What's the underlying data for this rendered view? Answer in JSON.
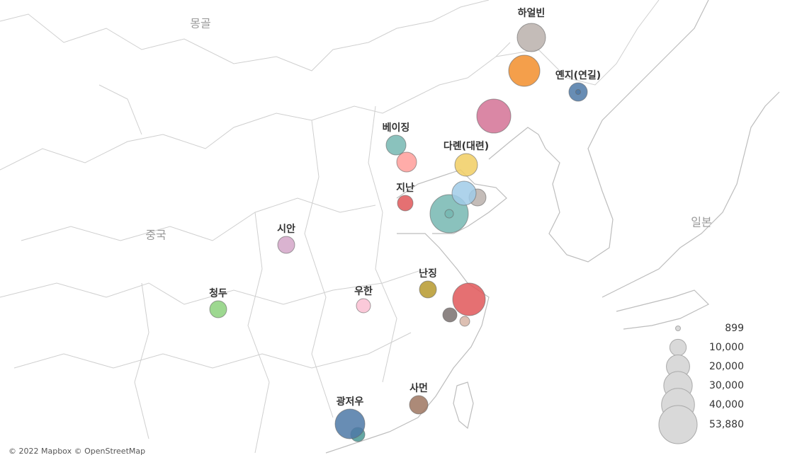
{
  "map_labels": [
    "몽골",
    "중국",
    "일본"
  ],
  "bubbles": [
    {
      "label": "하얼빈",
      "value": 29600,
      "color": "#bab0ac"
    },
    {
      "value": 35800,
      "color": "#f28e2b"
    },
    {
      "label": "옌지(연길)",
      "value": 12500,
      "color": "#4e79a7"
    },
    {
      "value": 900,
      "color": "#4e79a7"
    },
    {
      "value": 42600,
      "color": "#d37295"
    },
    {
      "label": "베이징",
      "value": 14500,
      "color": "#76b7b2"
    },
    {
      "value": 14500,
      "color": "#ff9d9a"
    },
    {
      "label": "다롄(대련)",
      "value": 18900,
      "color": "#f1ce63"
    },
    {
      "value": 53880,
      "color": "#76b7b2"
    },
    {
      "value": 2700,
      "color": "#76b7b2"
    },
    {
      "value": 10600,
      "color": "#bab0ac"
    },
    {
      "value": 21400,
      "color": "#a0cbe8"
    },
    {
      "label": "지난",
      "value": 8900,
      "color": "#e15759"
    },
    {
      "label": "시안",
      "value": 10600,
      "color": "#d4a6c8"
    },
    {
      "label": "난징",
      "value": 10600,
      "color": "#b6992d"
    },
    {
      "value": 39100,
      "color": "#e15759"
    },
    {
      "value": 7400,
      "color": "#79706e"
    },
    {
      "value": 3600,
      "color": "#d7b5a6"
    },
    {
      "label": "청두",
      "value": 10600,
      "color": "#8cd17d"
    },
    {
      "label": "우한",
      "value": 7400,
      "color": "#fabfd2"
    },
    {
      "label": "사먼",
      "value": 12500,
      "color": "#9d7660"
    },
    {
      "value": 7400,
      "color": "#499894"
    },
    {
      "label": "광저우",
      "value": 32600,
      "color": "#4e79a7"
    }
  ],
  "legend": {
    "values": [
      899,
      {
        "value": 10000,
        "label": "10,000"
      },
      {
        "value": 20000,
        "label": "20,000"
      },
      {
        "value": 30000,
        "label": "30,000"
      },
      {
        "value": 40000,
        "label": "40,000"
      },
      {
        "value": 53880,
        "label": "53,880"
      }
    ]
  },
  "attribution": "© 2022 Mapbox © OpenStreetMap"
}
